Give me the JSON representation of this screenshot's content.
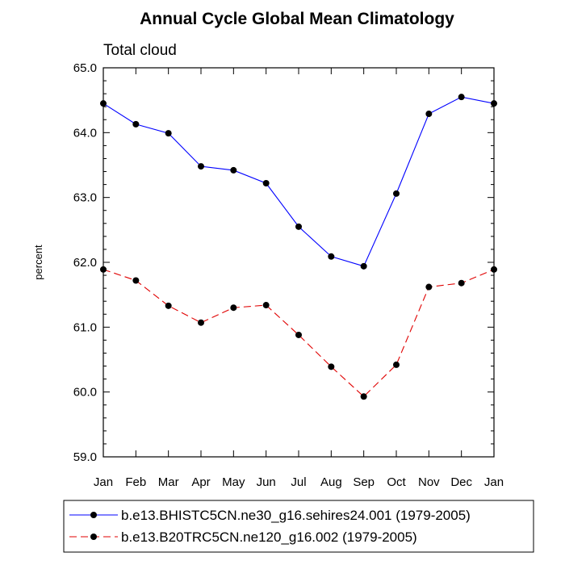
{
  "chart_data": {
    "type": "line",
    "title": "Annual Cycle Global Mean Climatology",
    "subtitle": "Total cloud",
    "ylabel": "percent",
    "xlabel": "",
    "categories": [
      "Jan",
      "Feb",
      "Mar",
      "Apr",
      "May",
      "Jun",
      "Jul",
      "Aug",
      "Sep",
      "Oct",
      "Nov",
      "Dec",
      "Jan"
    ],
    "ylim": [
      59.0,
      65.0
    ],
    "yticks": [
      59.0,
      60.0,
      61.0,
      62.0,
      63.0,
      64.0,
      65.0
    ],
    "ytick_labels": [
      "59.0",
      "60.0",
      "61.0",
      "62.0",
      "63.0",
      "64.0",
      "65.0"
    ],
    "legend_position": "bottom",
    "series": [
      {
        "name": "b.e13.BHISTC5CN.ne30_g16.sehires24.001 (1979-2005)",
        "color": "#0000ff",
        "dash": "solid",
        "values": [
          64.45,
          64.13,
          63.99,
          63.48,
          63.42,
          63.22,
          62.55,
          62.09,
          61.94,
          63.06,
          64.29,
          64.55,
          64.45
        ]
      },
      {
        "name": "b.e13.B20TRC5CN.ne120_g16.002 (1979-2005)",
        "color": "#e00000",
        "dash": "dashed",
        "values": [
          61.89,
          61.72,
          61.33,
          61.07,
          61.3,
          61.34,
          60.88,
          60.39,
          59.93,
          60.42,
          61.62,
          61.68,
          61.89
        ]
      }
    ]
  }
}
